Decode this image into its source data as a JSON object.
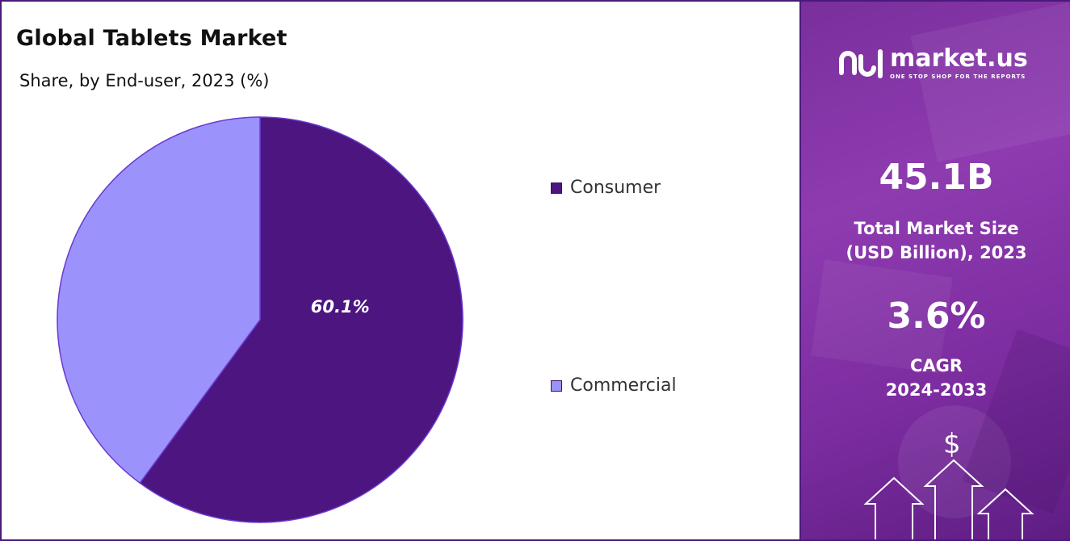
{
  "title": "Global Tablets Market",
  "subtitle": "Share, by End-user, 2023 (%)",
  "chart_data": {
    "type": "pie",
    "title": "Global Tablets Market",
    "subtitle": "Share, by End-user, 2023 (%)",
    "slices": [
      {
        "name": "Consumer",
        "value": 60.1,
        "color": "#4c1580",
        "label": "60.1%"
      },
      {
        "name": "Commercial",
        "value": 39.9,
        "color": "#9b93fb",
        "label": ""
      }
    ],
    "legend_position": "right"
  },
  "legend": {
    "items": [
      {
        "label": "Consumer",
        "color": "#4c1580"
      },
      {
        "label": "Commercial",
        "color": "#9b93fb"
      }
    ]
  },
  "sidebar": {
    "brand_name": "market.us",
    "brand_tagline": "ONE STOP SHOP FOR THE REPORTS",
    "market_size_value": "45.1B",
    "market_size_label_line1": "Total Market Size",
    "market_size_label_line2": "(USD Billion), 2023",
    "cagr_value": "3.6%",
    "cagr_label_line1": "CAGR",
    "cagr_label_line2": "2024-2033",
    "dollar_symbol": "$",
    "background_color": "#8a37ad"
  }
}
